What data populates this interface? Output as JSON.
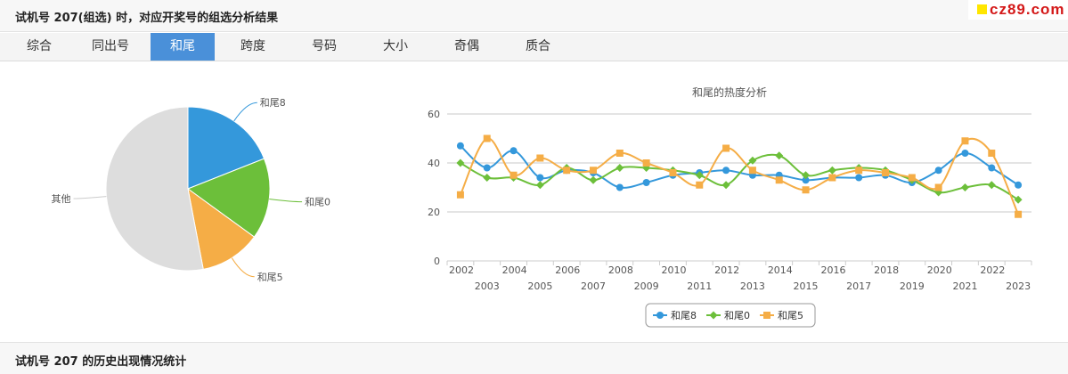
{
  "header": {
    "title": "试机号 207(组选) 时，对应开奖号的组选分析结果"
  },
  "brand": {
    "text": "cz89.com",
    "accent": "#ffe600",
    "color": "#d41919"
  },
  "tabs": [
    {
      "label": "综合",
      "active": false
    },
    {
      "label": "同出号",
      "active": false
    },
    {
      "label": "和尾",
      "active": true
    },
    {
      "label": "跨度",
      "active": false
    },
    {
      "label": "号码",
      "active": false
    },
    {
      "label": "大小",
      "active": false
    },
    {
      "label": "奇偶",
      "active": false
    },
    {
      "label": "质合",
      "active": false
    }
  ],
  "footer": {
    "title": "试机号 207 的历史出现情况统计"
  },
  "chart_data": [
    {
      "type": "pie",
      "slices": [
        {
          "label": "和尾8",
          "value": 19,
          "color": "#3498db"
        },
        {
          "label": "和尾0",
          "value": 16,
          "color": "#6cbf3a"
        },
        {
          "label": "和尾5",
          "value": 12,
          "color": "#f5ad46"
        },
        {
          "label": "其他",
          "value": 53,
          "color": "#dddddd"
        }
      ]
    },
    {
      "type": "line",
      "title": "和尾的热度分析",
      "x": [
        "2002",
        "2003",
        "2004",
        "2005",
        "2006",
        "2007",
        "2008",
        "2009",
        "2010",
        "2011",
        "2012",
        "2013",
        "2014",
        "2015",
        "2016",
        "2017",
        "2018",
        "2019",
        "2020",
        "2021",
        "2022",
        "2023"
      ],
      "ylim": [
        0,
        60
      ],
      "yticks": [
        0,
        20,
        40,
        60
      ],
      "grid": true,
      "legend": "bottom-center",
      "series": [
        {
          "name": "和尾8",
          "color": "#3498db",
          "marker": "circle",
          "values": [
            47,
            38,
            45,
            34,
            37,
            36,
            30,
            32,
            35,
            36,
            37,
            35,
            35,
            33,
            34,
            34,
            35,
            32,
            37,
            44,
            38,
            31
          ]
        },
        {
          "name": "和尾0",
          "color": "#6cbf3a",
          "marker": "diamond",
          "values": [
            40,
            34,
            34,
            31,
            38,
            33,
            38,
            38,
            37,
            35,
            31,
            41,
            43,
            35,
            37,
            38,
            37,
            33,
            28,
            30,
            31,
            25
          ]
        },
        {
          "name": "和尾5",
          "color": "#f5ad46",
          "marker": "square",
          "values": [
            27,
            50,
            35,
            42,
            37,
            37,
            44,
            40,
            36,
            31,
            46,
            37,
            33,
            29,
            34,
            37,
            36,
            34,
            30,
            49,
            44,
            19
          ]
        }
      ]
    }
  ]
}
